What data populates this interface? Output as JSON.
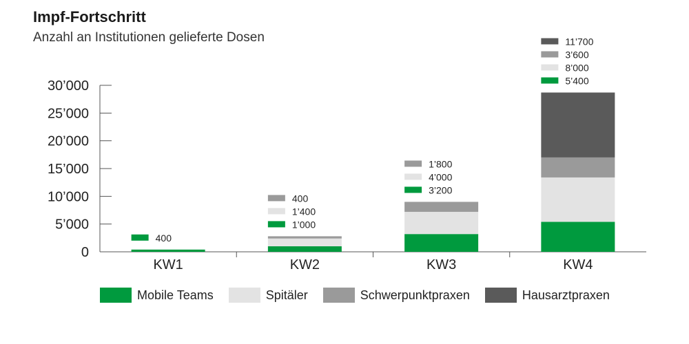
{
  "title": "Impf-Fortschritt",
  "subtitle": "Anzahl an Institutionen gelieferte Dosen",
  "chart_data": {
    "type": "bar",
    "stacked": true,
    "categories": [
      "KW1",
      "KW2",
      "KW3",
      "KW4"
    ],
    "series": [
      {
        "name": "Mobile Teams",
        "color": "#009a3e",
        "values": [
          400,
          1000,
          3200,
          5400
        ],
        "labels": [
          "400",
          "1’000",
          "3’200",
          "5’400"
        ]
      },
      {
        "name": "Spitäler",
        "color": "#e3e3e3",
        "values": [
          0,
          1400,
          4000,
          8000
        ],
        "labels": [
          "",
          "1’400",
          "4’000",
          "8’000"
        ]
      },
      {
        "name": "Schwerpunktpraxen",
        "color": "#9a9a9a",
        "values": [
          0,
          400,
          1800,
          3600
        ],
        "labels": [
          "",
          "400",
          "1’800",
          "3’600"
        ]
      },
      {
        "name": "Hausarztpraxen",
        "color": "#5a5a5a",
        "values": [
          0,
          0,
          0,
          11700
        ],
        "labels": [
          "",
          "",
          "",
          "11’700"
        ]
      }
    ],
    "ylim": [
      0,
      30000
    ],
    "yticks": [
      0,
      5000,
      10000,
      15000,
      20000,
      25000,
      30000
    ],
    "ytick_labels": [
      "0",
      "5’000",
      "10’000",
      "15’000",
      "20’000",
      "25’000",
      "30’000"
    ],
    "legend_position": "bottom",
    "grid": false
  }
}
